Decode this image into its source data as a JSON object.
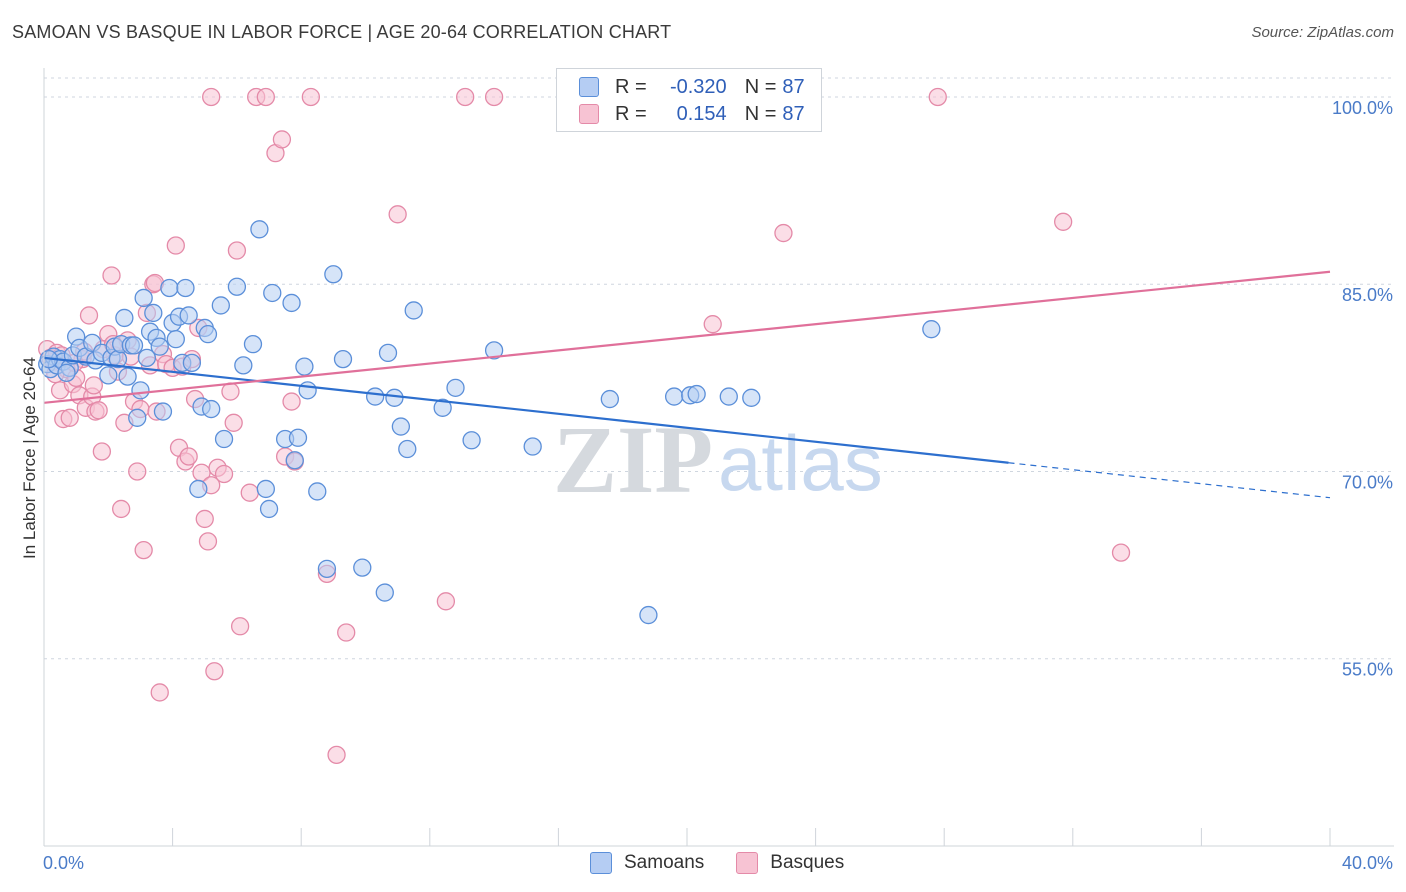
{
  "header": {
    "title": "SAMOAN VS BASQUE IN LABOR FORCE | AGE 20-64 CORRELATION CHART",
    "source": "Source: ZipAtlas.com"
  },
  "legend": {
    "r_label": "R =",
    "n_label": "N =",
    "rows": [
      {
        "r": "-0.320",
        "n": "87"
      },
      {
        "r": "0.154",
        "n": "87"
      }
    ]
  },
  "watermark": {
    "zip": "ZIP",
    "atlas": "atlas"
  },
  "colors": {
    "samoan_fill": "#b5cdf3",
    "samoan_stroke": "#5b8fd9",
    "samoan_line": "#2d6fce",
    "basque_fill": "#f7c3d3",
    "basque_stroke": "#e48aa8",
    "basque_line": "#e0709a",
    "grid": "#cfd6df",
    "tick_text": "#4a7bc8"
  },
  "chart_data": {
    "type": "scatter",
    "title": "SAMOAN VS BASQUE IN LABOR FORCE | AGE 20-64 CORRELATION CHART",
    "xlabel": "",
    "ylabel": "In Labor Force | Age 20-64",
    "xlim": [
      0,
      40
    ],
    "ylim": [
      40,
      102
    ],
    "x_tick_labels": [
      {
        "value": 0,
        "label": "0.0%"
      },
      {
        "value": 40,
        "label": "40.0%"
      }
    ],
    "y_tick_labels": [
      {
        "value": 100,
        "label": "100.0%"
      },
      {
        "value": 85,
        "label": "85.0%"
      },
      {
        "value": 70,
        "label": "70.0%"
      },
      {
        "value": 55,
        "label": "55.0%"
      }
    ],
    "grid": true,
    "series": [
      {
        "name": "Samoans",
        "R": -0.32,
        "N": 87,
        "trend": {
          "x0": 0,
          "y0": 79.1,
          "x1": 30,
          "y1": 70.7,
          "dash_to_x": 40,
          "dash_to_y": 67.9
        },
        "points": [
          [
            0.1,
            78.6
          ],
          [
            0.2,
            78.2
          ],
          [
            0.3,
            79.2
          ],
          [
            0.4,
            78.5
          ],
          [
            0.5,
            79.0
          ],
          [
            0.6,
            78.8
          ],
          [
            0.8,
            78.3
          ],
          [
            0.9,
            79.3
          ],
          [
            1.0,
            80.8
          ],
          [
            1.1,
            79.9
          ],
          [
            1.3,
            79.2
          ],
          [
            1.5,
            80.3
          ],
          [
            1.6,
            78.9
          ],
          [
            1.8,
            79.5
          ],
          [
            2.0,
            77.7
          ],
          [
            2.1,
            79.1
          ],
          [
            2.2,
            80.0
          ],
          [
            2.3,
            79.0
          ],
          [
            2.4,
            80.2
          ],
          [
            2.5,
            82.3
          ],
          [
            2.6,
            77.6
          ],
          [
            2.7,
            80.1
          ],
          [
            2.8,
            80.1
          ],
          [
            2.9,
            74.3
          ],
          [
            3.0,
            76.5
          ],
          [
            3.1,
            83.9
          ],
          [
            3.2,
            79.1
          ],
          [
            3.3,
            81.2
          ],
          [
            3.4,
            82.7
          ],
          [
            3.5,
            80.7
          ],
          [
            3.6,
            80.0
          ],
          [
            3.7,
            74.8
          ],
          [
            3.9,
            84.7
          ],
          [
            4.0,
            81.9
          ],
          [
            4.1,
            80.6
          ],
          [
            4.2,
            82.4
          ],
          [
            4.3,
            78.7
          ],
          [
            4.4,
            84.7
          ],
          [
            4.5,
            82.5
          ],
          [
            4.6,
            78.7
          ],
          [
            4.8,
            68.6
          ],
          [
            4.9,
            75.2
          ],
          [
            5.0,
            81.5
          ],
          [
            5.1,
            81.0
          ],
          [
            5.2,
            75.0
          ],
          [
            5.5,
            83.3
          ],
          [
            5.6,
            72.6
          ],
          [
            6.0,
            84.8
          ],
          [
            6.2,
            78.5
          ],
          [
            6.5,
            80.2
          ],
          [
            6.7,
            89.4
          ],
          [
            6.9,
            68.6
          ],
          [
            7.0,
            67.0
          ],
          [
            7.1,
            84.3
          ],
          [
            7.5,
            72.6
          ],
          [
            7.7,
            83.5
          ],
          [
            7.8,
            70.9
          ],
          [
            7.9,
            72.7
          ],
          [
            8.1,
            78.4
          ],
          [
            8.2,
            76.5
          ],
          [
            8.5,
            68.4
          ],
          [
            8.8,
            62.2
          ],
          [
            9.0,
            85.8
          ],
          [
            9.3,
            79.0
          ],
          [
            9.9,
            62.3
          ],
          [
            10.3,
            76.0
          ],
          [
            10.6,
            60.3
          ],
          [
            10.7,
            79.5
          ],
          [
            10.9,
            75.9
          ],
          [
            11.1,
            73.6
          ],
          [
            11.3,
            71.8
          ],
          [
            11.5,
            82.9
          ],
          [
            12.4,
            75.1
          ],
          [
            12.8,
            76.7
          ],
          [
            13.3,
            72.5
          ],
          [
            14.0,
            79.7
          ],
          [
            15.2,
            72.0
          ],
          [
            17.6,
            75.8
          ],
          [
            18.8,
            58.5
          ],
          [
            19.6,
            76.0
          ],
          [
            20.1,
            76.1
          ],
          [
            20.3,
            76.2
          ],
          [
            21.3,
            76.0
          ],
          [
            22.0,
            75.9
          ],
          [
            27.6,
            81.4
          ],
          [
            0.15,
            79.0
          ],
          [
            0.7,
            77.9
          ]
        ]
      },
      {
        "name": "Basques",
        "R": 0.154,
        "N": 87,
        "trend": {
          "x0": 0,
          "y0": 75.5,
          "x1": 40,
          "y1": 86.0
        },
        "points": [
          [
            0.1,
            79.8
          ],
          [
            0.2,
            79.1
          ],
          [
            0.3,
            78.8
          ],
          [
            0.4,
            79.5
          ],
          [
            0.5,
            76.5
          ],
          [
            0.6,
            74.2
          ],
          [
            0.7,
            78.2
          ],
          [
            0.8,
            74.3
          ],
          [
            0.9,
            77.0
          ],
          [
            1.0,
            77.5
          ],
          [
            1.1,
            76.1
          ],
          [
            1.2,
            79.0
          ],
          [
            1.3,
            75.1
          ],
          [
            1.4,
            82.5
          ],
          [
            1.5,
            76.0
          ],
          [
            1.6,
            74.8
          ],
          [
            1.7,
            74.9
          ],
          [
            1.8,
            71.6
          ],
          [
            2.0,
            81.0
          ],
          [
            2.1,
            85.7
          ],
          [
            2.2,
            79.3
          ],
          [
            2.3,
            78.0
          ],
          [
            2.4,
            67.0
          ],
          [
            2.5,
            73.9
          ],
          [
            2.6,
            80.5
          ],
          [
            2.7,
            79.2
          ],
          [
            2.8,
            75.6
          ],
          [
            2.9,
            70.0
          ],
          [
            3.0,
            75.0
          ],
          [
            3.1,
            63.7
          ],
          [
            3.2,
            82.7
          ],
          [
            3.3,
            78.5
          ],
          [
            3.4,
            85.0
          ],
          [
            3.5,
            74.8
          ],
          [
            3.6,
            52.3
          ],
          [
            3.7,
            79.4
          ],
          [
            3.8,
            78.6
          ],
          [
            4.0,
            78.3
          ],
          [
            4.1,
            88.1
          ],
          [
            4.2,
            71.9
          ],
          [
            4.3,
            78.4
          ],
          [
            4.4,
            70.8
          ],
          [
            4.5,
            71.2
          ],
          [
            4.6,
            79.0
          ],
          [
            4.7,
            75.8
          ],
          [
            4.8,
            81.5
          ],
          [
            4.9,
            69.9
          ],
          [
            5.0,
            66.2
          ],
          [
            5.1,
            64.4
          ],
          [
            5.2,
            68.9
          ],
          [
            5.3,
            54.0
          ],
          [
            5.4,
            70.3
          ],
          [
            5.6,
            69.8
          ],
          [
            5.8,
            76.4
          ],
          [
            5.9,
            73.9
          ],
          [
            6.0,
            87.7
          ],
          [
            6.1,
            57.6
          ],
          [
            6.4,
            68.3
          ],
          [
            6.6,
            100.0
          ],
          [
            6.9,
            100.0
          ],
          [
            7.2,
            95.5
          ],
          [
            7.4,
            96.6
          ],
          [
            7.5,
            71.2
          ],
          [
            7.7,
            75.6
          ],
          [
            7.8,
            70.8
          ],
          [
            8.3,
            100.0
          ],
          [
            8.8,
            61.8
          ],
          [
            9.1,
            47.3
          ],
          [
            9.4,
            57.1
          ],
          [
            11.0,
            90.6
          ],
          [
            12.5,
            59.6
          ],
          [
            13.1,
            100.0
          ],
          [
            14.0,
            100.0
          ],
          [
            20.8,
            81.8
          ],
          [
            23.0,
            89.1
          ],
          [
            27.8,
            100.0
          ],
          [
            31.7,
            90.0
          ],
          [
            33.5,
            63.5
          ],
          [
            0.35,
            77.8
          ],
          [
            0.55,
            79.3
          ],
          [
            0.95,
            78.7
          ],
          [
            1.25,
            79.6
          ],
          [
            1.55,
            76.9
          ],
          [
            1.85,
            79.8
          ],
          [
            2.15,
            80.2
          ],
          [
            3.45,
            85.1
          ],
          [
            5.2,
            100.0
          ]
        ]
      }
    ]
  },
  "bottom_legend": {
    "items": [
      {
        "label": "Samoans"
      },
      {
        "label": "Basques"
      }
    ]
  }
}
